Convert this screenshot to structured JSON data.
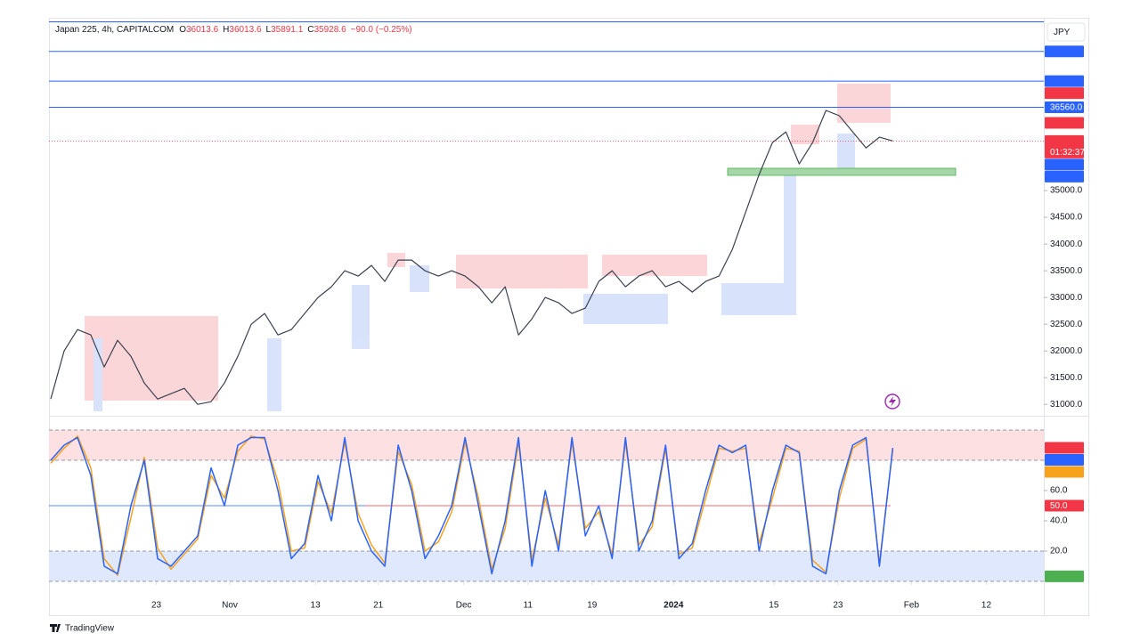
{
  "header": {
    "symbol": "Japan 225, 4h, CAPITALCOM",
    "ohlc": [
      {
        "key": "O",
        "value": "36013.6"
      },
      {
        "key": "H",
        "value": "36013.6"
      },
      {
        "key": "L",
        "value": "35891.1"
      },
      {
        "key": "C",
        "value": "35928.6"
      }
    ],
    "change": "−90.0 (−0.25%)",
    "currency": "JPY",
    "brand": "TradingView"
  },
  "chart_data": [
    {
      "type": "line",
      "xlim": [
        -0.13,
        74.3
      ],
      "xticks": [
        {
          "value": 7.9,
          "label": "23"
        },
        {
          "value": 13.4,
          "label": "Nov"
        },
        {
          "value": 19.8,
          "label": "13"
        },
        {
          "value": 24.5,
          "label": "21"
        },
        {
          "value": 30.9,
          "label": "Dec"
        },
        {
          "value": 35.7,
          "label": "11"
        },
        {
          "value": 40.5,
          "label": "19"
        },
        {
          "value": 46.6,
          "label": "2024"
        },
        {
          "value": 54.1,
          "label": "15"
        },
        {
          "value": 58.9,
          "label": "23"
        },
        {
          "value": 64.4,
          "label": "Feb"
        },
        {
          "value": 70,
          "label": "12"
        }
      ],
      "ylim": [
        30870,
        38150
      ],
      "yticks": [
        {
          "value": 35000,
          "label": "35000.0"
        },
        {
          "value": 34500,
          "label": "34500.0"
        },
        {
          "value": 34000,
          "label": "34000.0"
        },
        {
          "value": 33500,
          "label": "33500.0"
        },
        {
          "value": 33000,
          "label": "33000.0"
        },
        {
          "value": 32500,
          "label": "32500.0"
        },
        {
          "value": 32000,
          "label": "32000.0"
        },
        {
          "value": 31500,
          "label": "31500.0"
        },
        {
          "value": 31000,
          "label": "31000.0"
        }
      ],
      "grid": false,
      "series": [
        {
          "color": "#3c4150",
          "values": [
            31100,
            32000,
            32400,
            32300,
            31700,
            32200,
            31900,
            31400,
            31100,
            31200,
            31300,
            31000,
            31050,
            31400,
            31900,
            32500,
            32700,
            32300,
            32400,
            32700,
            33000,
            33200,
            33500,
            33400,
            33600,
            33300,
            33700,
            33700,
            33500,
            33400,
            33500,
            33400,
            33200,
            32900,
            33200,
            32300,
            32600,
            33000,
            32900,
            32700,
            32800,
            33300,
            33500,
            33200,
            33400,
            33500,
            33200,
            33300,
            33100,
            33300,
            33400,
            33900,
            34600,
            35300,
            35900,
            36100,
            35500,
            35900,
            36500,
            36400,
            36100,
            35800,
            36000,
            35928.6
          ]
        }
      ],
      "price_tags": [
        {
          "value": 37604.1,
          "color": "#2962ff",
          "line": true
        },
        {
          "value": 37049.1,
          "color": "#2962ff",
          "line": true
        },
        {
          "value": 36998.6,
          "color": "#f23645"
        },
        {
          "value": 36560,
          "label": "36560.0",
          "color": "#2962ff",
          "line": true
        },
        {
          "value": 36266.7,
          "color": "#f23645"
        },
        {
          "value": 35928.6,
          "color": "#f23645",
          "current": true
        },
        {
          "value": 35680.7,
          "color": "#2962ff"
        },
        {
          "value": 35680.7,
          "color": "#2962ff"
        }
      ],
      "countdown": "01:32:37"
    },
    {
      "type": "line",
      "ylim": [
        0,
        100
      ],
      "yticks": [
        {
          "value": 80,
          "label": "80.0"
        },
        {
          "value": 60,
          "label": "60.0"
        },
        {
          "value": 40,
          "label": "40.0"
        },
        {
          "value": 20,
          "label": "20.0"
        }
      ],
      "grid": false,
      "bands": [
        {
          "from": 80,
          "to": 100,
          "color": "#fde0e2"
        },
        {
          "from": 0,
          "to": 20,
          "color": "#dfe8fc"
        }
      ],
      "midline": 50,
      "series": [
        {
          "color": "#f7a21b",
          "values": [
            78,
            88,
            96,
            75,
            15,
            4,
            42,
            82,
            22,
            8,
            18,
            28,
            70,
            55,
            86,
            96,
            94,
            66,
            20,
            22,
            66,
            45,
            92,
            45,
            24,
            12,
            86,
            64,
            20,
            26,
            46,
            92,
            55,
            8,
            35,
            92,
            14,
            55,
            24,
            92,
            35,
            46,
            18,
            92,
            24,
            36,
            88,
            18,
            22,
            55,
            88,
            86,
            88,
            25,
            55,
            88,
            86,
            14,
            6,
            55,
            88,
            94,
            12,
            87.4
          ]
        },
        {
          "color": "#2962ff",
          "values": [
            80,
            90,
            95,
            70,
            10,
            5,
            50,
            80,
            15,
            10,
            20,
            30,
            75,
            50,
            90,
            95,
            95,
            60,
            15,
            25,
            70,
            40,
            95,
            40,
            20,
            10,
            90,
            60,
            15,
            30,
            50,
            95,
            50,
            5,
            40,
            95,
            10,
            60,
            20,
            95,
            30,
            50,
            15,
            95,
            20,
            40,
            90,
            15,
            25,
            60,
            90,
            85,
            90,
            20,
            60,
            90,
            85,
            10,
            5,
            60,
            90,
            95,
            10,
            88.2
          ]
        }
      ],
      "value_tags": [
        {
          "value": 88.2,
          "color": "#f23645"
        },
        {
          "value": 88.2,
          "color": "#2962ff"
        },
        {
          "value": 87.4,
          "color": "#f7a21b"
        },
        {
          "value": 50,
          "label": "50.0",
          "color": "#f23645"
        },
        {
          "value": 3.3,
          "color": "#4caf50"
        }
      ]
    }
  ]
}
